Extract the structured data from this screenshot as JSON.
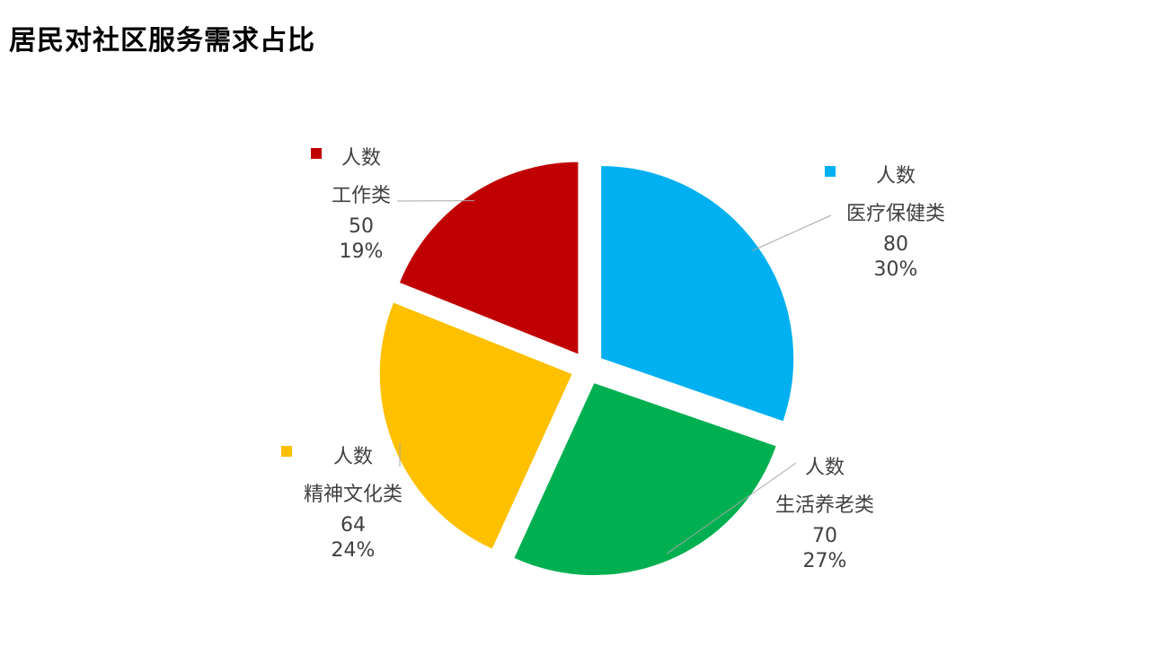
{
  "page": {
    "title": "居民对社区服务需求占比"
  },
  "chart_data": {
    "type": "pie",
    "title": "居民对社区服务需求占比",
    "series_name": "人数",
    "slices": [
      {
        "category": "医疗保健类",
        "value": 80,
        "percent": "30%",
        "color": "#00B0F0"
      },
      {
        "category": "生活养老类",
        "value": 70,
        "percent": "27%",
        "color": "#00B050"
      },
      {
        "category": "精神文化类",
        "value": 64,
        "percent": "24%",
        "color": "#FFC000"
      },
      {
        "category": "工作类",
        "value": 50,
        "percent": "19%",
        "color": "#C00000"
      }
    ],
    "exploded": true,
    "legend": "none"
  }
}
